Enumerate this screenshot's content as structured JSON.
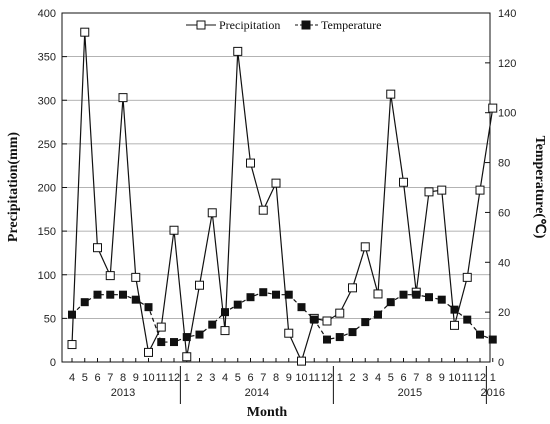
{
  "chart_data": {
    "type": "line",
    "xlabel": "Month",
    "ylabel_left": "Precipitation(mm)",
    "ylabel_right": "Temperature(℃)",
    "ylim_left": [
      0,
      400
    ],
    "ylim_right": [
      0,
      140
    ],
    "yticks_left": [
      "0",
      "50",
      "100",
      "150",
      "200",
      "250",
      "300",
      "350",
      "400"
    ],
    "yticks_right": [
      "0",
      "20",
      "40",
      "60",
      "80",
      "100",
      "120",
      "140"
    ],
    "grid": "horizontal",
    "legend_placement": "top-center",
    "month_ticks": [
      "4",
      "5",
      "6",
      "7",
      "8",
      "9",
      "10",
      "11",
      "12",
      "1",
      "2",
      "3",
      "4",
      "5",
      "6",
      "7",
      "8",
      "9",
      "10",
      "11",
      "12",
      "1",
      "2",
      "3",
      "4",
      "5",
      "6",
      "7",
      "8",
      "9",
      "10",
      "11",
      "12",
      "1"
    ],
    "year_labels": [
      "2013",
      "2014",
      "2015",
      "2016"
    ],
    "series": [
      {
        "name": "Precipitation",
        "axis": "left",
        "marker": "open-square",
        "color": "#111111",
        "values": [
          20,
          378,
          131,
          99,
          303,
          97,
          11,
          40,
          151,
          6,
          88,
          171,
          36,
          356,
          228,
          174,
          205,
          33,
          1,
          50,
          47,
          56,
          85,
          132,
          78,
          307,
          206,
          80,
          195,
          197,
          42,
          97,
          197,
          291
        ]
      },
      {
        "name": "Temperature",
        "axis": "right",
        "marker": "filled-square",
        "color": "#111111",
        "values": [
          19,
          24,
          27,
          27,
          27,
          25,
          22,
          8,
          8,
          10,
          11,
          15,
          20,
          23,
          26,
          28,
          27,
          27,
          22,
          17,
          9,
          10,
          12,
          16,
          19,
          24,
          27,
          27,
          26,
          25,
          21,
          17,
          11,
          9
        ]
      }
    ]
  }
}
